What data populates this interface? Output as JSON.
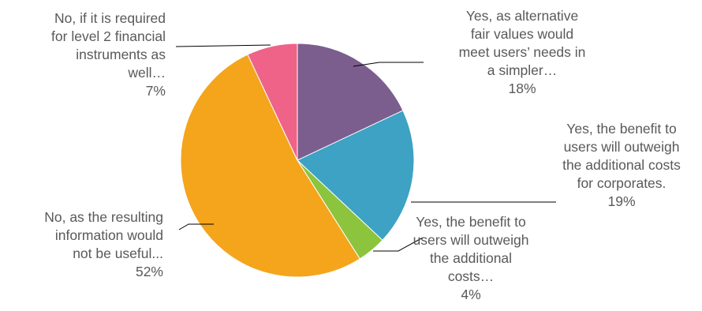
{
  "chart_data": {
    "type": "pie",
    "title": "",
    "slices": [
      {
        "label": [
          "Yes, as alternative",
          "fair values would",
          "meet users’ needs in",
          "a simpler…"
        ],
        "value": 18,
        "pct_label": "18%",
        "color": "#7B5E8E"
      },
      {
        "label": [
          "Yes, the benefit to",
          "users will outweigh",
          "the additional costs",
          "for corporates."
        ],
        "value": 19,
        "pct_label": "19%",
        "color": "#3DA2C3"
      },
      {
        "label": [
          "Yes, the benefit to",
          "users will outweigh",
          "the additional",
          "costs…"
        ],
        "value": 4,
        "pct_label": "4%",
        "color": "#8CC43D"
      },
      {
        "label": [
          "No, as the resulting",
          "information would",
          "not be useful..."
        ],
        "value": 52,
        "pct_label": "52%",
        "color": "#F4A51C"
      },
      {
        "label": [
          "No, if it is required",
          "for level 2 financial",
          "instruments as",
          "well…"
        ],
        "value": 7,
        "pct_label": "7%",
        "color": "#EE6387"
      }
    ],
    "legend": "none"
  }
}
